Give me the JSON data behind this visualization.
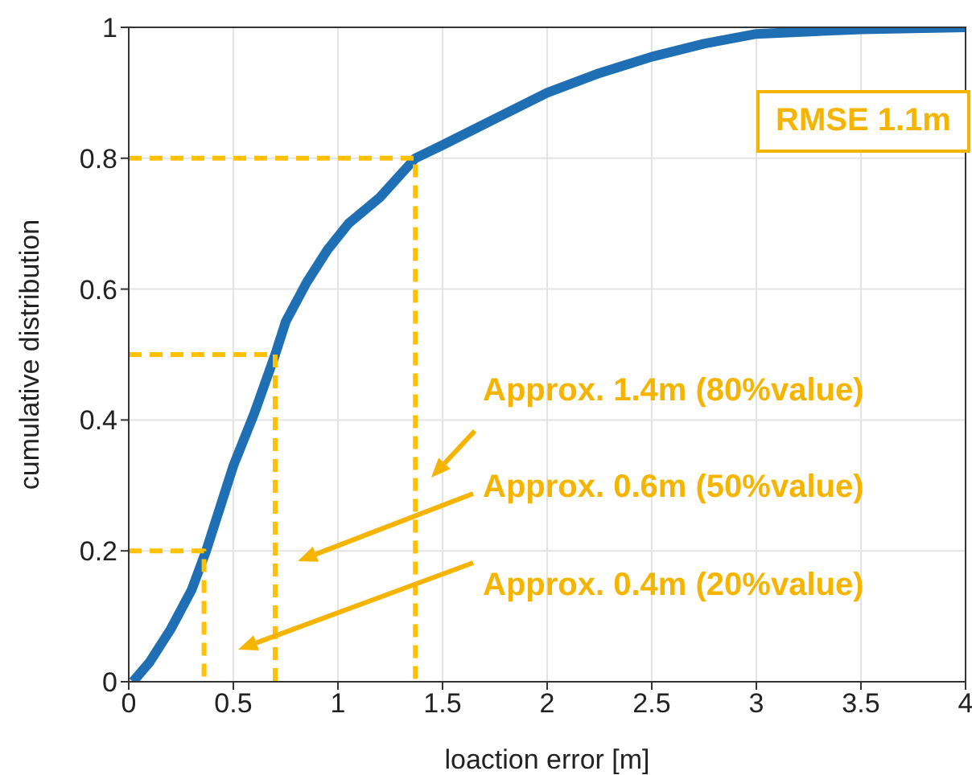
{
  "chart_data": {
    "type": "line",
    "xlabel": "loaction error [m]",
    "ylabel": "cumulative distribution",
    "xlim": [
      0,
      4
    ],
    "xticks": [
      0,
      0.5,
      1,
      1.5,
      2,
      2.5,
      3,
      3.5,
      4
    ],
    "ylim": [
      0,
      1
    ],
    "yticks": [
      0,
      0.2,
      0.4,
      0.6,
      0.8,
      1
    ],
    "grid": true,
    "marker": "none",
    "series": [
      {
        "color": "#1f6fb4",
        "line_style": "solid",
        "x": [
          0.02,
          0.1,
          0.2,
          0.3,
          0.37,
          0.45,
          0.5,
          0.6,
          0.7,
          0.75,
          0.85,
          0.95,
          1.05,
          1.2,
          1.37,
          1.5,
          1.75,
          2,
          2.25,
          2.5,
          2.75,
          3,
          3.5,
          4
        ],
        "values": [
          0,
          0.03,
          0.08,
          0.14,
          0.2,
          0.28,
          0.33,
          0.41,
          0.5,
          0.55,
          0.61,
          0.66,
          0.7,
          0.74,
          0.8,
          0.82,
          0.86,
          0.9,
          0.93,
          0.955,
          0.975,
          0.99,
          0.997,
          1
        ]
      },
      {
        "color": "#ffc000",
        "line_style": "dashed",
        "x": [
          0,
          0.36,
          0.36
        ],
        "values": [
          0.2,
          0.2,
          0
        ]
      },
      {
        "color": "#ffc000",
        "line_style": "dashed",
        "x": [
          0,
          0.7,
          0.7
        ],
        "values": [
          0.5,
          0.5,
          0
        ]
      },
      {
        "color": "#ffc000",
        "line_style": "dashed",
        "x": [
          0,
          1.37,
          1.37
        ],
        "values": [
          0.8,
          0.8,
          0
        ]
      }
    ],
    "annotations": [
      "RMSE 1.1m",
      "Approx. 1.4m (80%value)",
      "Approx. 0.6m (50%value)",
      "Approx. 0.4m (20%value)"
    ]
  }
}
